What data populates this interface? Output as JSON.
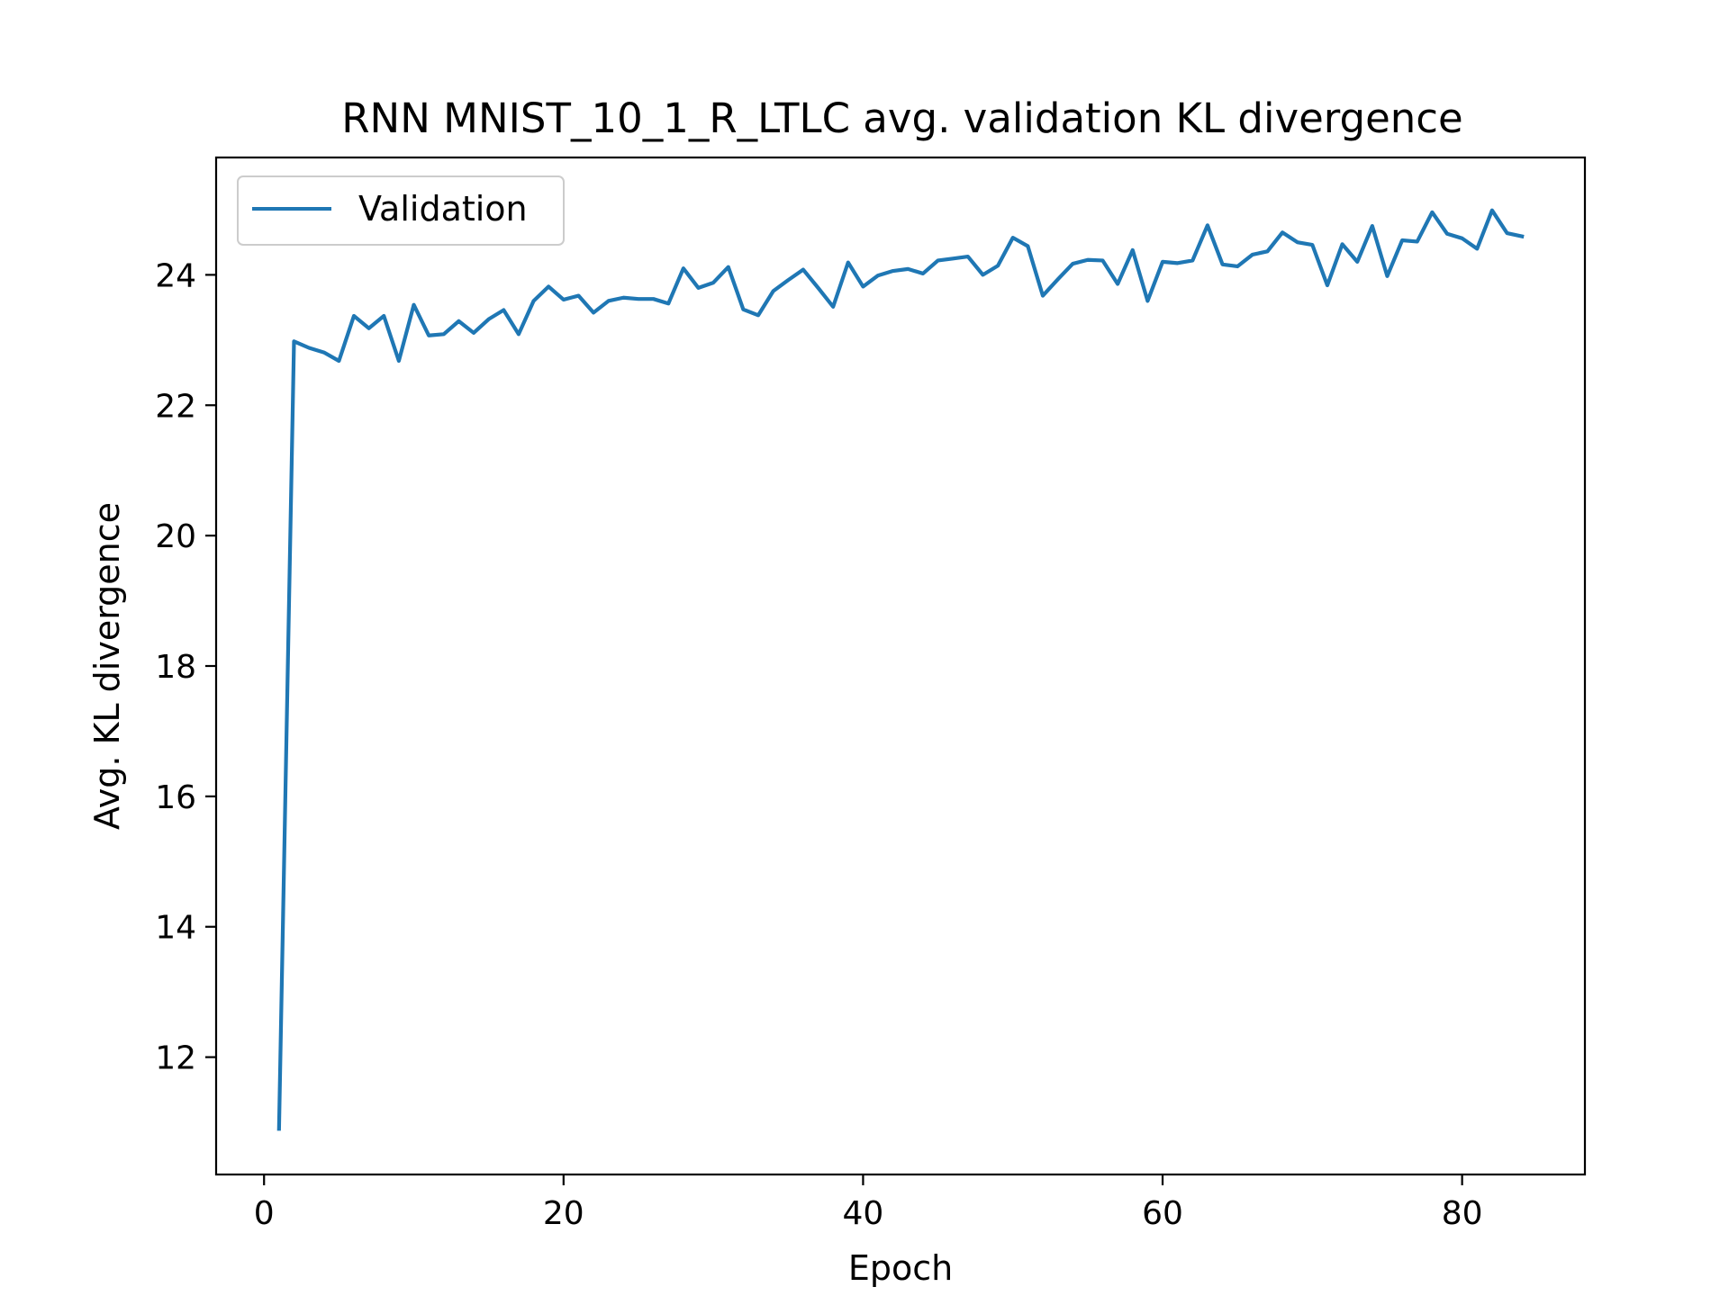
{
  "chart_data": {
    "type": "line",
    "title": "RNN MNIST_10_1_R_LTLC avg. validation KL divergence",
    "xlabel": "Epoch",
    "ylabel": "Avg. KL divergence",
    "xlim": [
      -3.2,
      88.2
    ],
    "ylim": [
      10.2,
      25.8
    ],
    "xticks": [
      0,
      20,
      40,
      60,
      80
    ],
    "yticks": [
      12,
      14,
      16,
      18,
      20,
      22,
      24
    ],
    "grid": false,
    "legend_position": "upper-left",
    "series": [
      {
        "name": "Validation",
        "color": "#1f77b4",
        "x": [
          1,
          2,
          3,
          4,
          5,
          6,
          7,
          8,
          9,
          10,
          11,
          12,
          13,
          14,
          15,
          16,
          17,
          18,
          19,
          20,
          21,
          22,
          23,
          24,
          25,
          26,
          27,
          28,
          29,
          30,
          31,
          32,
          33,
          34,
          35,
          36,
          37,
          38,
          39,
          40,
          41,
          42,
          43,
          44,
          45,
          46,
          47,
          48,
          49,
          50,
          51,
          52,
          53,
          54,
          55,
          56,
          57,
          58,
          59,
          60,
          61,
          62,
          63,
          64,
          65,
          66,
          67,
          68,
          69,
          70,
          71,
          72,
          73,
          74,
          75,
          76,
          77,
          78,
          79,
          80,
          81,
          82,
          83,
          84
        ],
        "y": [
          10.9,
          22.98,
          22.88,
          22.81,
          22.68,
          23.37,
          23.18,
          23.37,
          22.68,
          23.54,
          23.07,
          23.09,
          23.29,
          23.11,
          23.32,
          23.46,
          23.09,
          23.6,
          23.82,
          23.62,
          23.68,
          23.42,
          23.6,
          23.65,
          23.63,
          23.63,
          23.56,
          24.1,
          23.8,
          23.88,
          24.12,
          23.47,
          23.38,
          23.75,
          23.92,
          24.08,
          23.8,
          23.51,
          24.19,
          23.82,
          23.99,
          24.06,
          24.09,
          24.02,
          24.22,
          24.25,
          24.28,
          24.0,
          24.14,
          24.57,
          24.44,
          23.68,
          23.93,
          24.17,
          24.23,
          24.22,
          23.86,
          24.38,
          23.6,
          24.2,
          24.18,
          24.22,
          24.76,
          24.16,
          24.13,
          24.31,
          24.36,
          24.65,
          24.5,
          24.46,
          23.84,
          24.47,
          24.2,
          24.75,
          23.98,
          24.53,
          24.51,
          24.96,
          24.63,
          24.56,
          24.4,
          24.99,
          24.64,
          24.59
        ]
      }
    ]
  }
}
